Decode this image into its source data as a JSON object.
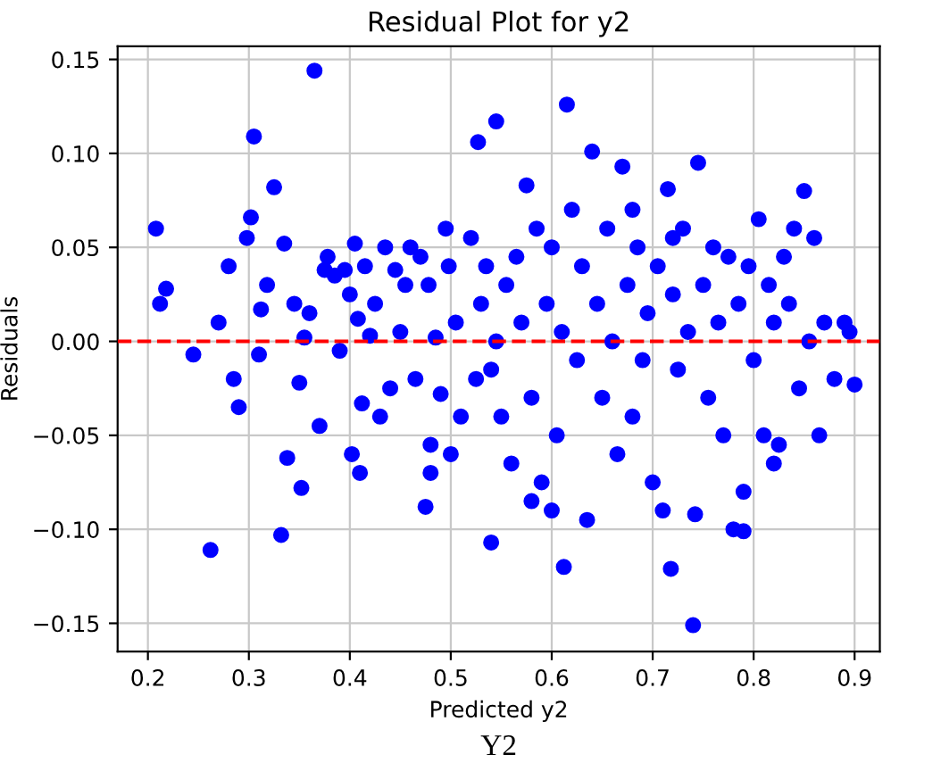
{
  "chart_data": {
    "type": "scatter",
    "title": "Residual Plot for y2",
    "xlabel": "Predicted y2",
    "ylabel": "Residuals",
    "annotations": [
      "Y2"
    ],
    "x": [
      0.208,
      0.212,
      0.218,
      0.245,
      0.262,
      0.27,
      0.28,
      0.285,
      0.29,
      0.298,
      0.302,
      0.305,
      0.31,
      0.312,
      0.318,
      0.325,
      0.332,
      0.335,
      0.338,
      0.345,
      0.35,
      0.352,
      0.355,
      0.36,
      0.365,
      0.37,
      0.375,
      0.378,
      0.385,
      0.39,
      0.395,
      0.4,
      0.402,
      0.405,
      0.408,
      0.41,
      0.412,
      0.415,
      0.42,
      0.425,
      0.43,
      0.435,
      0.44,
      0.445,
      0.45,
      0.455,
      0.46,
      0.465,
      0.47,
      0.475,
      0.478,
      0.48,
      0.485,
      0.49,
      0.495,
      0.498,
      0.5,
      0.505,
      0.51,
      0.527,
      0.545,
      0.54,
      0.52,
      0.525,
      0.53,
      0.535,
      0.54,
      0.545,
      0.55,
      0.555,
      0.56,
      0.565,
      0.57,
      0.575,
      0.58,
      0.585,
      0.59,
      0.595,
      0.6,
      0.605,
      0.61,
      0.612,
      0.615,
      0.62,
      0.625,
      0.63,
      0.635,
      0.64,
      0.645,
      0.65,
      0.655,
      0.66,
      0.665,
      0.67,
      0.675,
      0.68,
      0.685,
      0.69,
      0.695,
      0.7,
      0.705,
      0.71,
      0.715,
      0.718,
      0.72,
      0.725,
      0.73,
      0.735,
      0.74,
      0.742,
      0.745,
      0.75,
      0.755,
      0.76,
      0.765,
      0.77,
      0.775,
      0.78,
      0.785,
      0.79,
      0.795,
      0.8,
      0.805,
      0.81,
      0.815,
      0.82,
      0.825,
      0.83,
      0.835,
      0.84,
      0.845,
      0.85,
      0.855,
      0.86,
      0.865,
      0.87,
      0.88,
      0.89,
      0.9,
      0.895,
      0.79,
      0.82,
      0.58,
      0.6,
      0.48,
      0.68,
      0.72
    ],
    "values": [
      0.06,
      0.02,
      0.028,
      -0.007,
      -0.111,
      0.01,
      0.04,
      -0.02,
      -0.035,
      0.055,
      0.066,
      0.109,
      -0.007,
      0.017,
      0.03,
      0.082,
      -0.103,
      0.052,
      -0.062,
      0.02,
      -0.022,
      -0.078,
      0.002,
      0.015,
      0.144,
      -0.045,
      0.038,
      0.045,
      0.035,
      -0.005,
      0.038,
      0.025,
      -0.06,
      0.052,
      0.012,
      -0.07,
      -0.033,
      0.04,
      0.003,
      0.02,
      -0.04,
      0.05,
      -0.025,
      0.038,
      0.005,
      0.03,
      0.05,
      -0.02,
      0.045,
      -0.088,
      0.03,
      -0.055,
      0.002,
      -0.028,
      0.06,
      0.04,
      -0.06,
      0.01,
      -0.04,
      0.106,
      0.117,
      -0.107,
      0.055,
      -0.02,
      0.02,
      0.04,
      -0.015,
      0.0,
      -0.04,
      0.03,
      -0.065,
      0.045,
      0.01,
      0.083,
      -0.03,
      0.06,
      -0.075,
      0.02,
      0.05,
      -0.05,
      0.005,
      -0.12,
      0.126,
      0.07,
      -0.01,
      0.04,
      -0.095,
      0.101,
      0.02,
      -0.03,
      0.06,
      0.0,
      -0.06,
      0.093,
      0.03,
      -0.04,
      0.05,
      -0.01,
      0.015,
      -0.075,
      0.04,
      -0.09,
      0.081,
      -0.121,
      0.025,
      -0.015,
      0.06,
      0.005,
      -0.151,
      -0.092,
      0.095,
      0.03,
      -0.03,
      0.05,
      0.01,
      -0.05,
      0.045,
      -0.1,
      0.02,
      -0.08,
      0.04,
      -0.01,
      0.065,
      -0.05,
      0.03,
      0.01,
      -0.055,
      0.045,
      0.02,
      0.06,
      -0.025,
      0.08,
      0.0,
      0.055,
      -0.05,
      0.01,
      -0.02,
      0.01,
      -0.023,
      0.005,
      -0.101,
      -0.065,
      -0.085,
      -0.09,
      -0.07,
      0.07,
      0.055
    ],
    "color": "#0000ff",
    "marker": "circle",
    "xlim": [
      0.17,
      0.925
    ],
    "ylim": [
      -0.165,
      0.157
    ],
    "xticks": [
      {
        "value": 0.2,
        "label": "0.2"
      },
      {
        "value": 0.3,
        "label": "0.3"
      },
      {
        "value": 0.4,
        "label": "0.4"
      },
      {
        "value": 0.5,
        "label": "0.5"
      },
      {
        "value": 0.6,
        "label": "0.6"
      },
      {
        "value": 0.7,
        "label": "0.7"
      },
      {
        "value": 0.8,
        "label": "0.8"
      },
      {
        "value": 0.9,
        "label": "0.9"
      }
    ],
    "yticks": [
      {
        "value": -0.15,
        "label": "−0.15"
      },
      {
        "value": -0.1,
        "label": "−0.10"
      },
      {
        "value": -0.05,
        "label": "−0.05"
      },
      {
        "value": 0,
        "label": "0.00"
      },
      {
        "value": 0.05,
        "label": "0.05"
      },
      {
        "value": 0.1,
        "label": "0.10"
      },
      {
        "value": 0.15,
        "label": "0.15"
      }
    ],
    "grid": true,
    "ref_lines": [
      {
        "axis": "y",
        "value": 0,
        "color": "#ff0000",
        "line_style": "dashed"
      }
    ]
  }
}
